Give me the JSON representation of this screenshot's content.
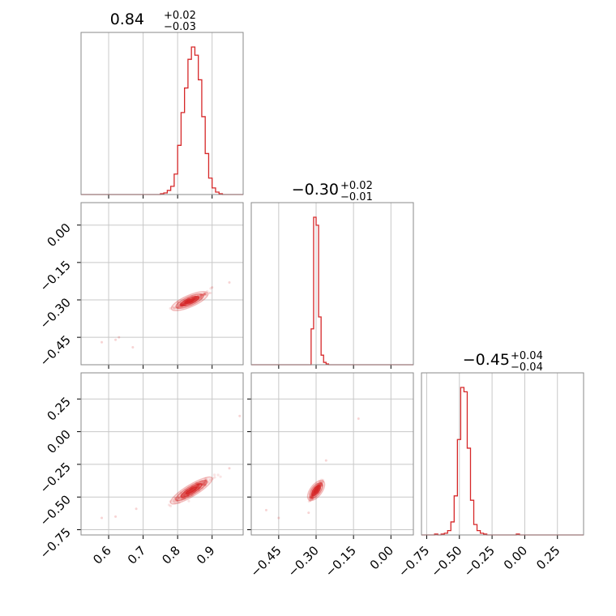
{
  "chart_data": {
    "type": "corner",
    "color": "#d62728",
    "grid": true,
    "titles": [
      {
        "median": "0.84",
        "plus": "+0.02",
        "minus": "−0.03"
      },
      {
        "median": "−0.30",
        "plus": "+0.02",
        "minus": "−0.01"
      },
      {
        "median": "−0.45",
        "plus": "+0.04",
        "minus": "−0.04"
      }
    ],
    "ranges": [
      [
        0.52,
        0.99
      ],
      [
        -0.56,
        0.09
      ],
      [
        -0.79,
        0.45
      ]
    ],
    "ticks": [
      {
        "values": [
          0.6,
          0.7,
          0.8,
          0.9
        ],
        "labels": [
          "0.6",
          "0.7",
          "0.8",
          "0.9"
        ]
      },
      {
        "values": [
          -0.45,
          -0.3,
          -0.15,
          0.0
        ],
        "labels": [
          "−0.45",
          "−0.30",
          "−0.15",
          "0.00"
        ]
      },
      {
        "values": [
          -0.75,
          -0.5,
          -0.25,
          0.0,
          0.25
        ],
        "labels": [
          "−0.75",
          "−0.50",
          "−0.25",
          "0.00",
          "0.25"
        ]
      }
    ],
    "histograms": [
      {
        "edges_start": 0.52,
        "bin_width": 0.01,
        "counts": [
          0,
          0,
          0,
          0,
          0,
          0,
          0,
          0,
          0,
          0,
          0,
          0,
          0,
          0,
          0,
          0,
          0,
          0,
          0,
          0,
          0,
          0,
          0,
          1,
          2,
          5,
          10,
          25,
          60,
          100,
          130,
          165,
          180,
          170,
          140,
          95,
          50,
          20,
          8,
          3,
          1,
          0,
          0,
          0,
          0,
          0,
          0
        ]
      },
      {
        "edges_start": -0.56,
        "bin_width": 0.01,
        "counts": [
          0,
          0,
          0,
          0,
          0,
          0,
          0,
          0,
          0,
          0,
          0,
          0,
          0,
          0,
          0,
          0,
          0,
          0,
          0,
          0,
          0,
          0,
          0,
          0,
          45,
          185,
          175,
          60,
          12,
          3,
          1,
          0,
          0,
          0,
          0,
          0,
          0,
          0,
          0,
          0,
          0,
          0,
          0,
          0,
          0,
          0,
          0,
          0,
          0,
          0,
          0,
          0,
          0,
          0,
          0,
          0,
          0,
          0,
          0,
          0,
          0,
          0,
          0,
          0,
          0
        ]
      },
      {
        "edges_start": -0.79,
        "bin_width": 0.025,
        "counts": [
          0,
          0,
          0,
          0,
          1,
          0,
          1,
          2,
          5,
          15,
          45,
          110,
          170,
          165,
          100,
          40,
          12,
          5,
          2,
          1,
          0,
          0,
          0,
          0,
          0,
          0,
          0,
          0,
          0,
          1,
          0,
          0,
          0,
          0,
          0,
          0,
          0,
          0,
          0,
          0,
          0,
          0,
          0,
          0,
          0,
          0,
          0,
          0,
          0,
          0
        ]
      }
    ],
    "correlations": [
      {
        "x_dim": 0,
        "y_dim": 1,
        "center": [
          0.835,
          -0.305
        ],
        "sd_x": 0.022,
        "sd_y": 0.013,
        "slope": 0.6
      },
      {
        "x_dim": 0,
        "y_dim": 2,
        "center": [
          0.84,
          -0.45
        ],
        "sd_x": 0.025,
        "sd_y": 0.04,
        "slope": 1.6
      },
      {
        "x_dim": 1,
        "y_dim": 2,
        "center": [
          -0.3,
          -0.45
        ],
        "sd_x": 0.012,
        "sd_y": 0.04,
        "slope": 2.5
      }
    ],
    "outliers": [
      {
        "x_dim": 0,
        "y_dim": 1,
        "points": [
          [
            0.58,
            -0.47
          ],
          [
            0.62,
            -0.46
          ],
          [
            0.63,
            -0.45
          ],
          [
            0.67,
            -0.49
          ],
          [
            0.95,
            -0.23
          ],
          [
            0.9,
            -0.25
          ]
        ]
      },
      {
        "x_dim": 0,
        "y_dim": 2,
        "points": [
          [
            0.58,
            -0.66
          ],
          [
            0.62,
            -0.65
          ],
          [
            0.68,
            -0.59
          ],
          [
            0.95,
            -0.28
          ],
          [
            0.98,
            0.12
          ]
        ]
      },
      {
        "x_dim": 1,
        "y_dim": 2,
        "points": [
          [
            -0.5,
            -0.6
          ],
          [
            -0.45,
            -0.66
          ],
          [
            -0.13,
            0.1
          ],
          [
            -0.26,
            -0.22
          ],
          [
            -0.33,
            -0.62
          ]
        ]
      }
    ]
  }
}
